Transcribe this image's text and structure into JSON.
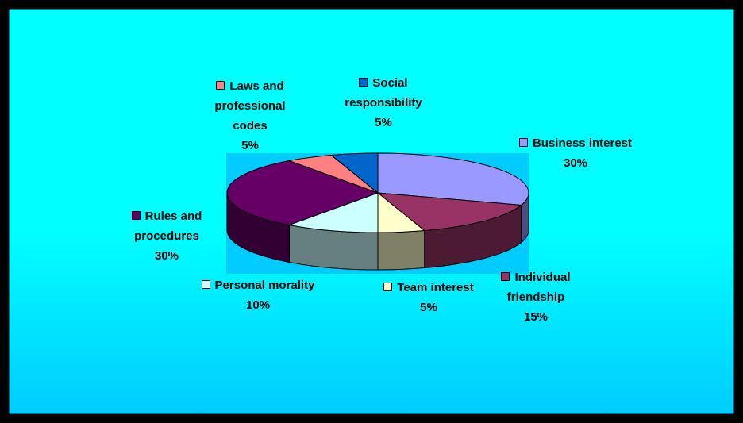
{
  "chart_data": {
    "type": "pie3d",
    "categories": [
      "Business interest",
      "Individual friendship",
      "Team interest",
      "Personal morality",
      "Rules and procedures",
      "Laws and professional codes",
      "Social responsibility"
    ],
    "values": [
      30,
      15,
      5,
      10,
      30,
      5,
      5
    ],
    "value_labels": [
      "30%",
      "15%",
      "5%",
      "10%",
      "30%",
      "5%",
      "5%"
    ],
    "colors": [
      "#9999ff",
      "#993366",
      "#ffffcc",
      "#ccffff",
      "#660066",
      "#ff8080",
      "#0066cc"
    ]
  }
}
